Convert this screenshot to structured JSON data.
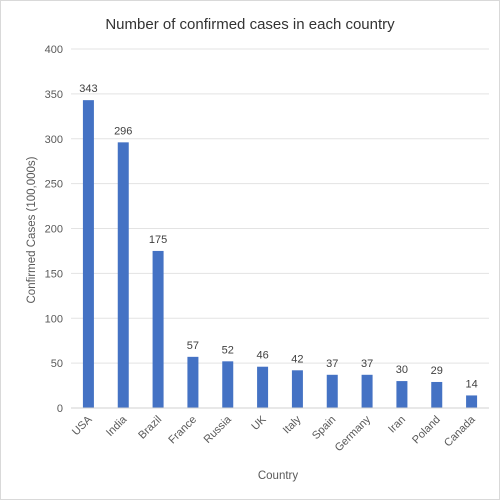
{
  "chart_data": {
    "type": "bar",
    "title": "Number of confirmed cases in each country",
    "xlabel": "Country",
    "ylabel": "Confirmed Cases (100,000s)",
    "categories": [
      "USA",
      "India",
      "Brazil",
      "France",
      "Russia",
      "UK",
      "Italy",
      "Spain",
      "Germany",
      "Iran",
      "Poland",
      "Canada"
    ],
    "values": [
      343,
      296,
      175,
      57,
      52,
      46,
      42,
      37,
      37,
      30,
      29,
      14
    ],
    "ylim": [
      0,
      400
    ],
    "yticks": [
      0,
      50,
      100,
      150,
      200,
      250,
      300,
      350,
      400
    ],
    "grid": true,
    "legend": "none",
    "bar_color": "#4472c4"
  }
}
